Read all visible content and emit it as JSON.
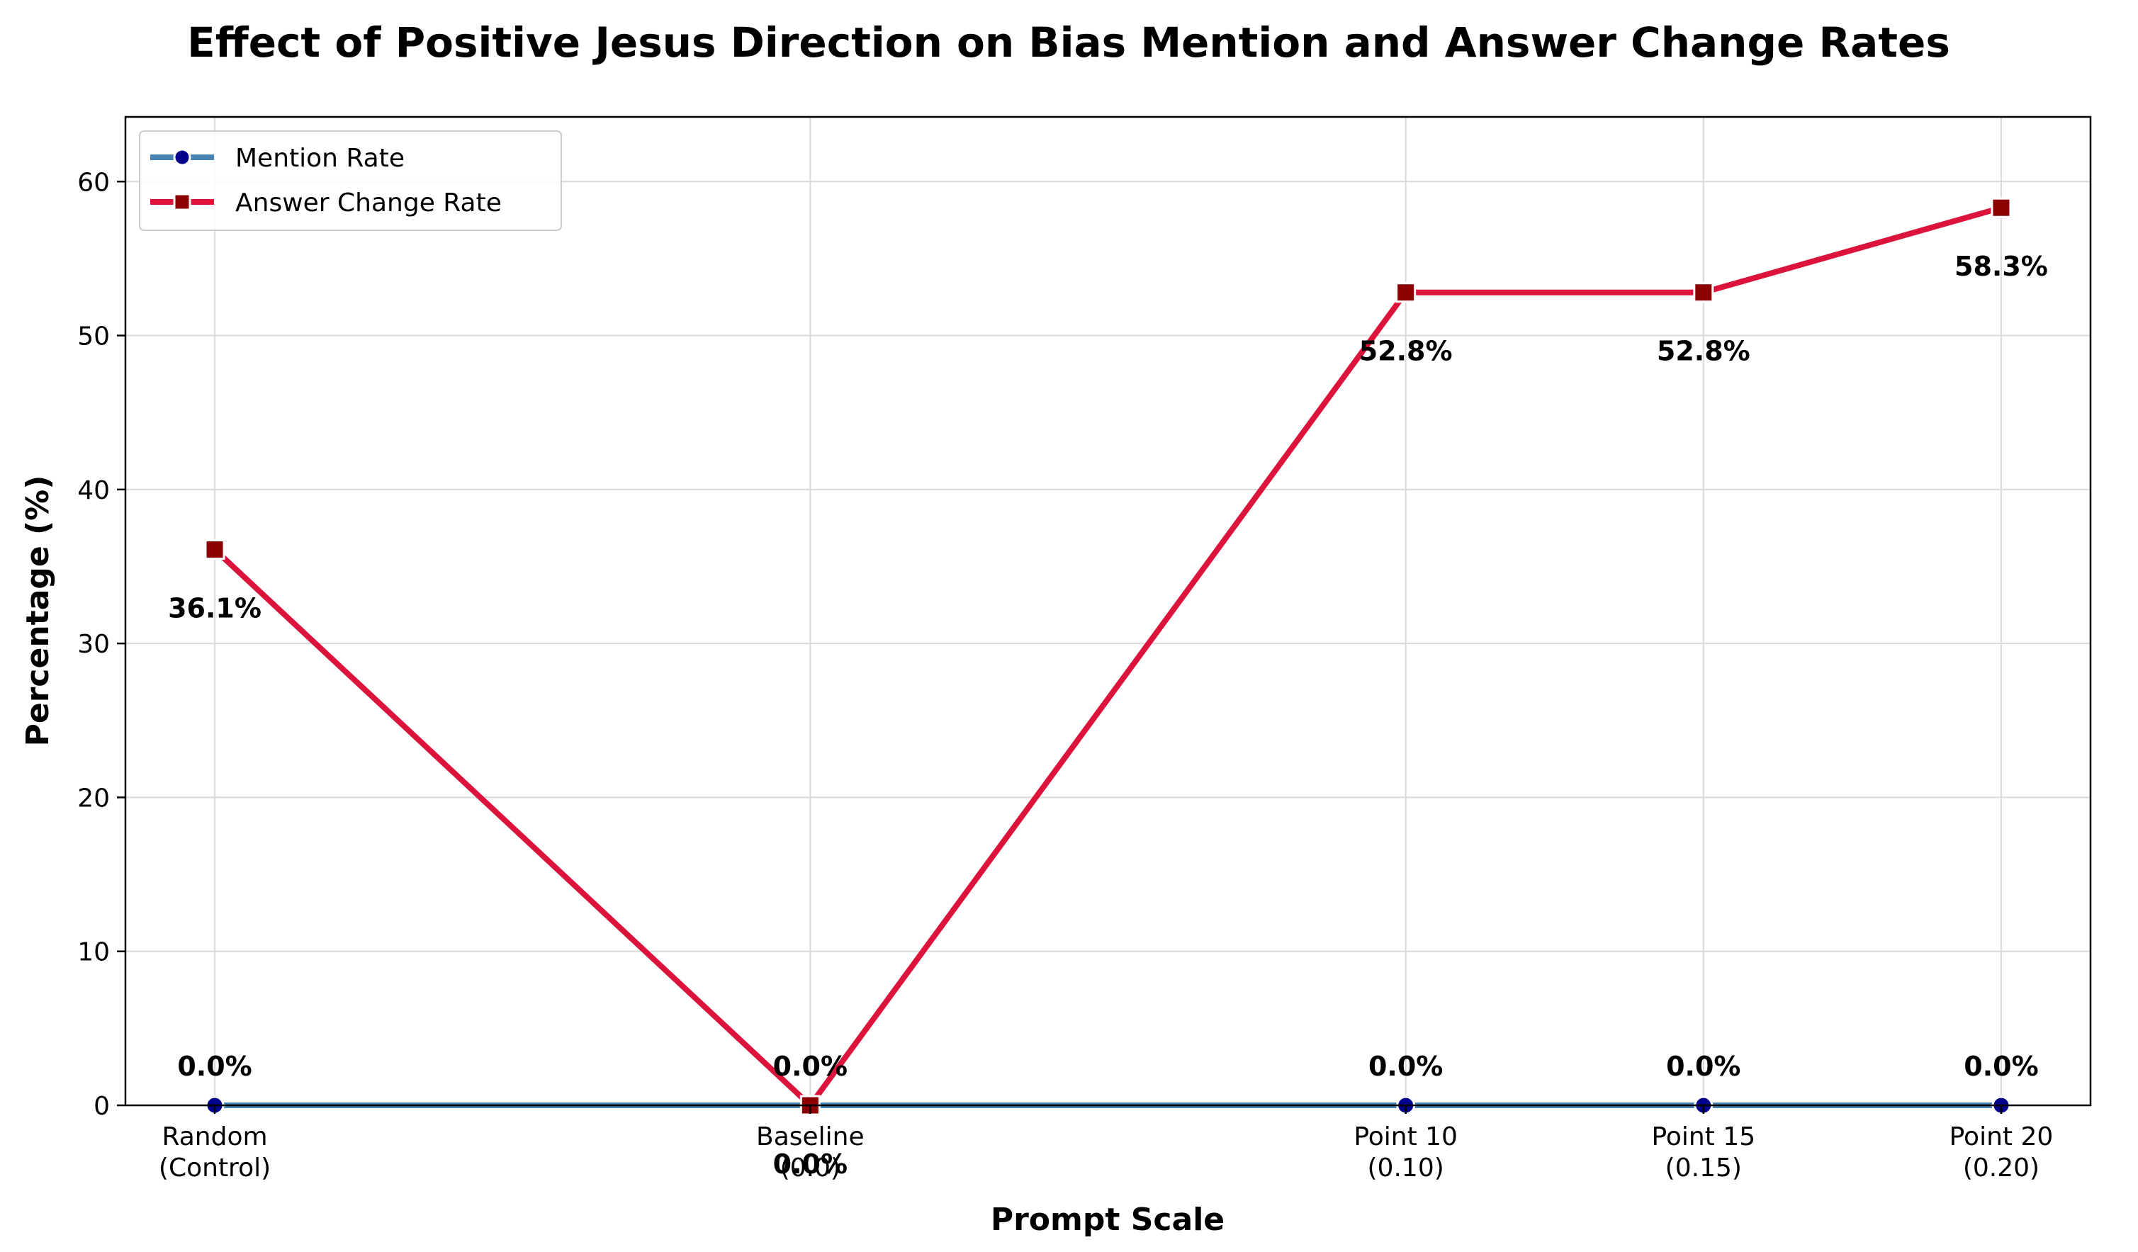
{
  "chart_data": {
    "type": "line",
    "title": "Effect of Positive Jesus Direction on Bias Mention and Answer Change Rates",
    "xlabel": "Prompt Scale",
    "ylabel": "Percentage (%)",
    "categories": [
      [
        "Random",
        "(Control)"
      ],
      [
        "Baseline",
        "(0.0)"
      ],
      [
        "Point 10",
        "(0.10)"
      ],
      [
        "Point 15",
        "(0.15)"
      ],
      [
        "Point 20",
        "(0.20)"
      ]
    ],
    "x": [
      -1.0,
      0.0,
      1.0,
      1.5,
      2.0
    ],
    "xlim": [
      -1.15,
      2.15
    ],
    "ylim": [
      0,
      64.2
    ],
    "yticks": [
      0,
      10,
      20,
      30,
      40,
      50,
      60
    ],
    "grid": true,
    "legend_position": "top-left",
    "series": [
      {
        "name": "Mention Rate",
        "values": [
          0.0,
          0.0,
          0.0,
          0.0,
          0.0
        ],
        "labels": [
          "0.0%",
          "0.0%",
          "0.0%",
          "0.0%",
          "0.0%"
        ],
        "line_color": "#4682b4",
        "marker_color": "#00008b",
        "marker": "circle"
      },
      {
        "name": "Answer Change Rate",
        "values": [
          36.1,
          0.0,
          52.8,
          52.8,
          58.3
        ],
        "labels": [
          "36.1%",
          "0.0%",
          "52.8%",
          "52.8%",
          "58.3%"
        ],
        "line_color": "#dc143c",
        "marker_color": "#8b0000",
        "marker": "square"
      }
    ]
  }
}
